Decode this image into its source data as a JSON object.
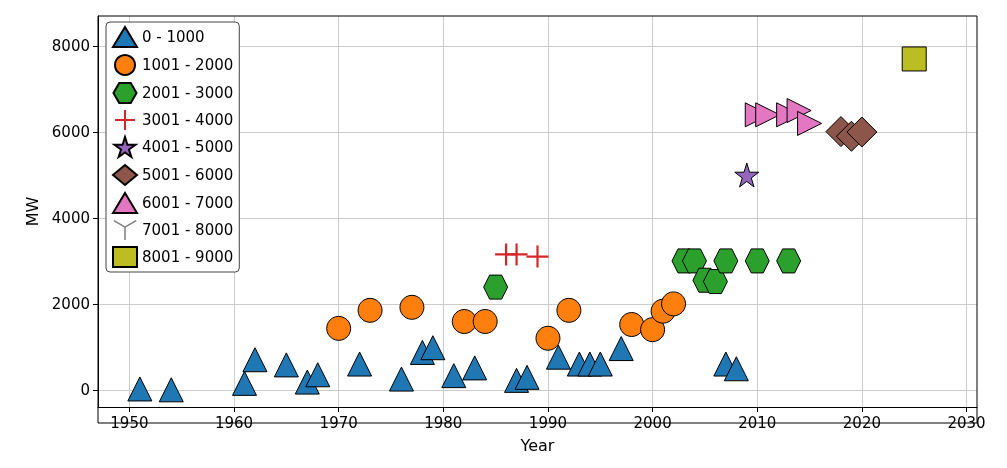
{
  "chart_data": {
    "type": "scatter",
    "xlabel": "Year",
    "ylabel": "MW",
    "xlim": [
      1947,
      2031
    ],
    "ylim": [
      -400,
      8700
    ],
    "xticks": [
      1950,
      1960,
      1970,
      1980,
      1990,
      2000,
      2010,
      2020,
      2030
    ],
    "yticks": [
      0,
      2000,
      4000,
      6000,
      8000
    ],
    "grid": true,
    "legend": "top left",
    "series": [
      {
        "name": "0 - 1000",
        "color": "#1f77b4",
        "marker": "triangle",
        "x": [
          1951,
          1954,
          1961,
          1962,
          1965,
          1967,
          1968,
          1972,
          1976,
          1978,
          1979,
          1981,
          1983,
          1987,
          1988,
          1991,
          1993,
          1994,
          1995,
          1997,
          2007,
          2008
        ],
        "values": [
          20,
          0,
          150,
          700,
          580,
          180,
          350,
          600,
          250,
          870,
          980,
          330,
          510,
          220,
          290,
          760,
          600,
          600,
          600,
          960,
          600,
          490
        ]
      },
      {
        "name": "1001 - 2000",
        "color": "#ff7f0e",
        "marker": "circle",
        "x": [
          1970,
          1973,
          1977,
          1982,
          1984,
          1990,
          1992,
          1998,
          2000,
          2001,
          2002
        ],
        "values": [
          1430,
          1850,
          1920,
          1590,
          1590,
          1200,
          1850,
          1520,
          1400,
          1830,
          2000
        ]
      },
      {
        "name": "2001 - 3000",
        "color": "#2ca02c",
        "x": [
          1985,
          2003,
          2004,
          2005,
          2006,
          2007,
          2010,
          2013
        ],
        "values": [
          2390,
          3000,
          3000,
          2550,
          2520,
          3000,
          3000,
          3000
        ]
      },
      {
        "name": "3001 - 4000",
        "color": "#d62728",
        "marker": "plus",
        "x": [
          1986,
          1987,
          1989
        ],
        "values": [
          3150,
          3150,
          3100
        ]
      },
      {
        "name": "4001 - 5000",
        "color": "#9467bd",
        "marker": "star",
        "x": [
          2009
        ],
        "values": [
          5000
        ]
      },
      {
        "name": "5001 - 6000",
        "color": "#8c564b",
        "marker": "diamond",
        "x": [
          2018,
          2019,
          2020
        ],
        "values": [
          6010,
          5900,
          6000
        ]
      },
      {
        "name": "6001 - 7000",
        "color": "#e377c2",
        "marker": "triangle-right",
        "x": [
          2010,
          2011,
          2013,
          2014,
          2015
        ],
        "values": [
          6400,
          6400,
          6400,
          6500,
          6200
        ]
      },
      {
        "name": "7001 - 8000",
        "color": "#7f7f7f",
        "marker": "tri-down"
      },
      {
        "name": "8001 - 9000",
        "color": "#bcbd22",
        "marker": "square",
        "x": [
          2025
        ],
        "values": [
          7700
        ]
      }
    ]
  }
}
